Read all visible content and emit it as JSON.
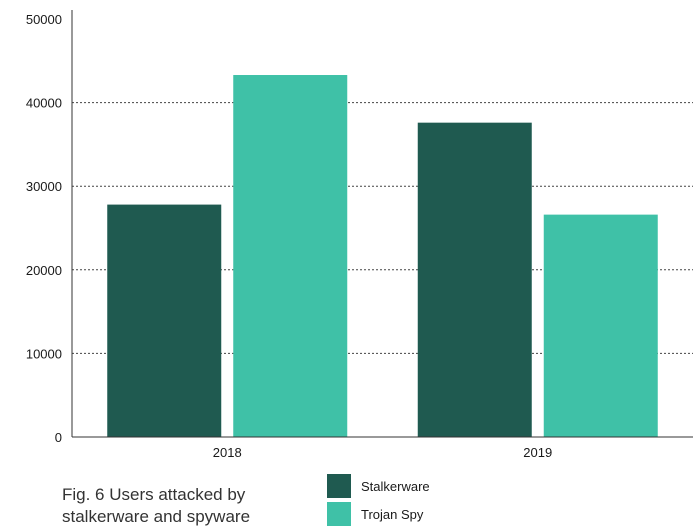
{
  "chart_data": {
    "type": "bar",
    "categories": [
      "2018",
      "2019"
    ],
    "series": [
      {
        "name": "Stalkerware",
        "color": "#1f5a50",
        "values": [
          27800,
          37600
        ]
      },
      {
        "name": "Trojan Spy",
        "color": "#3fc1a7",
        "values": [
          43300,
          26600
        ]
      }
    ],
    "ylim": [
      0,
      50000
    ],
    "yticks": [
      "0",
      "10000",
      "20000",
      "30000",
      "40000",
      "50000"
    ],
    "grid": "dotted horizontal",
    "legend_position": "bottom"
  },
  "caption": "Fig. 6 Users attacked by stalkerware and spyware"
}
